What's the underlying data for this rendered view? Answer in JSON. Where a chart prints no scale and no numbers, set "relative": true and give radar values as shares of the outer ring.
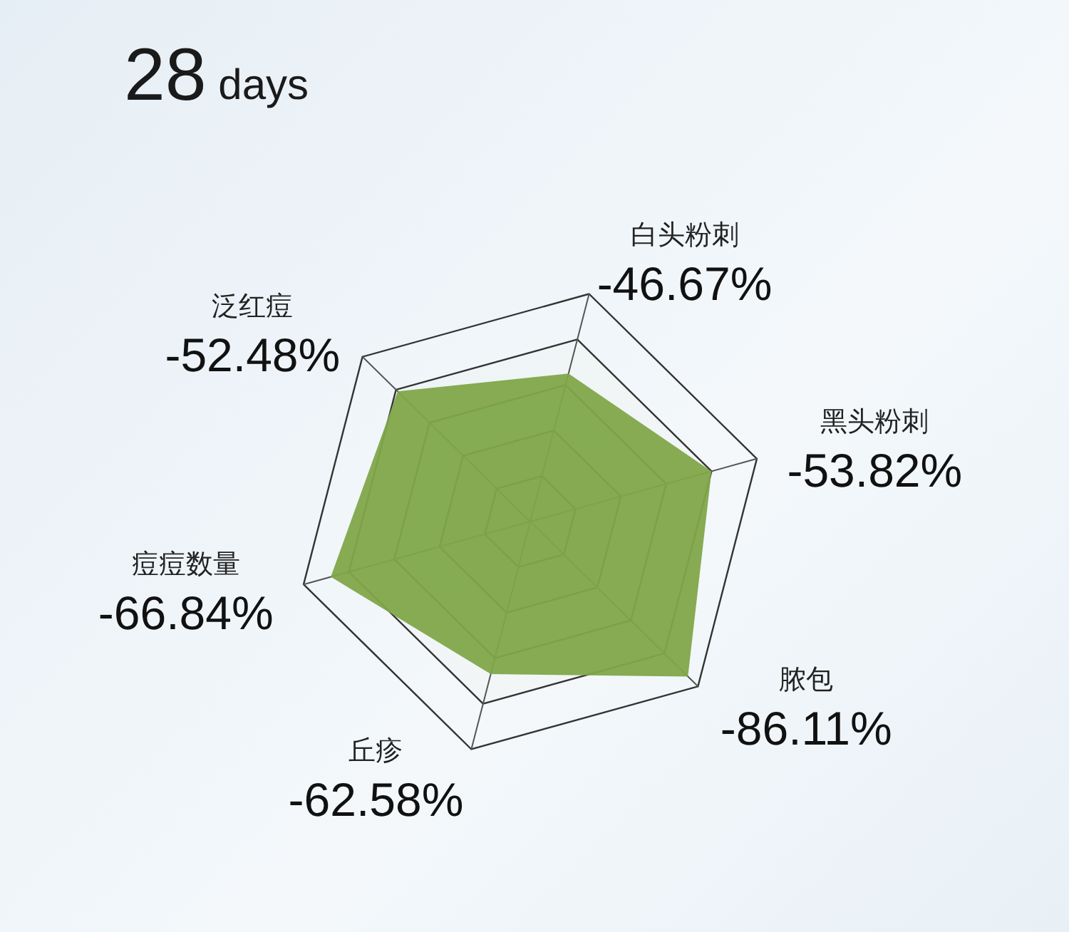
{
  "chart_data": {
    "type": "radar",
    "title": "28 days",
    "relative": true,
    "grid": true,
    "categories": [
      "白头粉刺",
      "黑头粉刺",
      "脓包",
      "丘疹",
      "痘痘数量",
      "泛红痘"
    ],
    "series": [
      {
        "color": "#7fa64a",
        "values": [
          0.65,
          0.8,
          0.94,
          0.67,
          0.88,
          0.79
        ]
      }
    ],
    "value_labels": [
      "-46.67%",
      "-53.82%",
      "-86.11%",
      "-62.58%",
      "-66.84%",
      "-52.48%"
    ]
  }
}
